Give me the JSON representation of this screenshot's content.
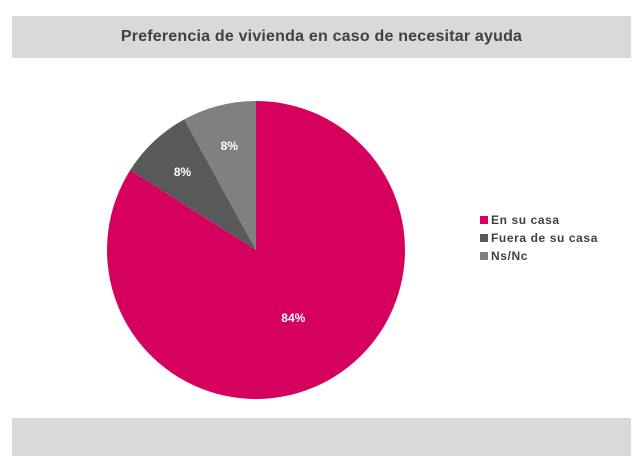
{
  "chart_data": {
    "type": "pie",
    "title": "Preferencia de vivienda en caso de necesitar ayuda",
    "categories": [
      "En su casa",
      "Fuera de su casa",
      "Ns/Nc"
    ],
    "values": [
      84,
      8,
      8
    ],
    "labels": [
      "84%",
      "8%",
      "8%"
    ],
    "colors": [
      "#d6005f",
      "#595959",
      "#808080"
    ],
    "legend_position": "right"
  }
}
